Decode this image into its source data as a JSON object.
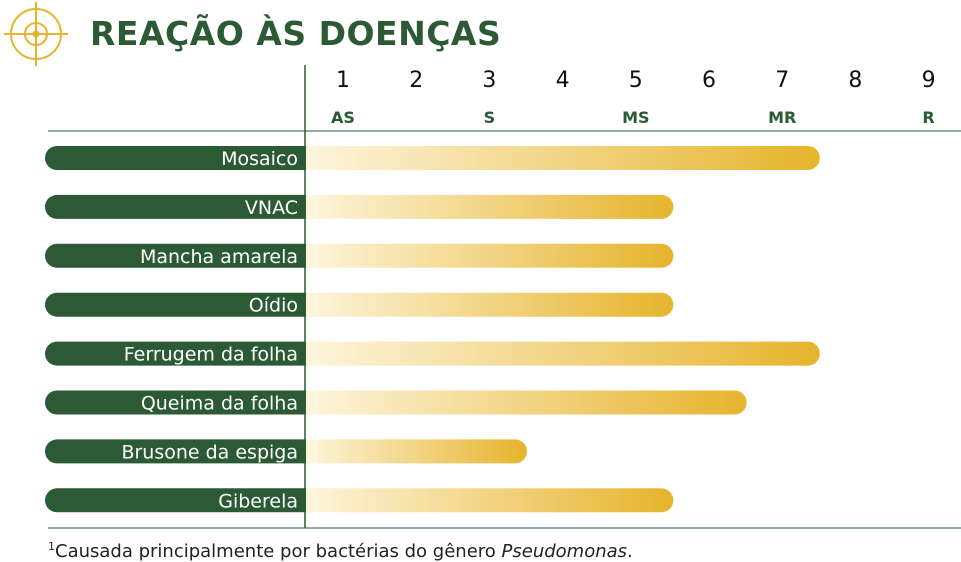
{
  "title": "REAÇÃO ÀS DOENÇAS",
  "footnote": {
    "marker": "1",
    "text": "Causada principalmente por bactérias do gênero ",
    "italic": "Pseudomonas",
    "end": "."
  },
  "colors": {
    "title": "#2b5a34",
    "label_pill": "#2b5a34",
    "bar_start": "#fdf5dc",
    "bar_end": "#e6b42c",
    "scale_letters": "#2b5a34"
  },
  "icon": "target-crosshair-icon",
  "chart_data": {
    "type": "bar",
    "orientation": "horizontal",
    "title": "REAÇÃO ÀS DOENÇAS",
    "x_ticks": [
      "1",
      "2",
      "3",
      "4",
      "5",
      "6",
      "7",
      "8",
      "9"
    ],
    "scale_labels": [
      {
        "label": "AS",
        "at": 1
      },
      {
        "label": "S",
        "at": 3
      },
      {
        "label": "MS",
        "at": 5
      },
      {
        "label": "MR",
        "at": 7
      },
      {
        "label": "R",
        "at": 9
      }
    ],
    "xlim": [
      0.5,
      9
    ],
    "categories": [
      "Mosaico",
      "VNAC",
      "Mancha amarela",
      "Oídio",
      "Ferrugem da folha",
      "Queima da folha",
      "Brusone da espiga",
      "Giberela"
    ],
    "values": [
      7.5,
      5.5,
      5.5,
      5.5,
      7.5,
      6.5,
      3.5,
      5.5
    ],
    "grid": false,
    "legend": "none"
  }
}
